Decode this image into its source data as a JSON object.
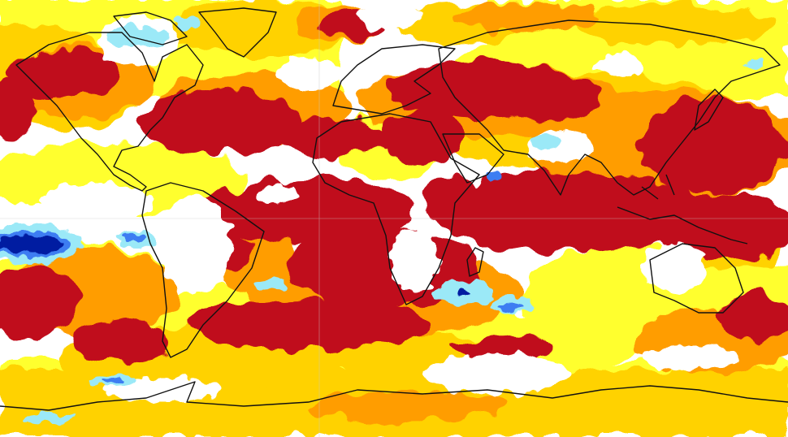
{
  "map": {
    "projection": "equirectangular",
    "colors": {
      "extreme_warm": "#c00c1c",
      "very_warm": "#f04d10",
      "warm": "#ff9d00",
      "slightly_warm": "#ffd200",
      "mild": "#ffff2e",
      "neutral": "#ffffff",
      "cool": "#9be9f7",
      "colder": "#3c7df2",
      "coldest": "#001aa1",
      "coastline": "#111111",
      "graticule": "#c9c9c9"
    }
  }
}
